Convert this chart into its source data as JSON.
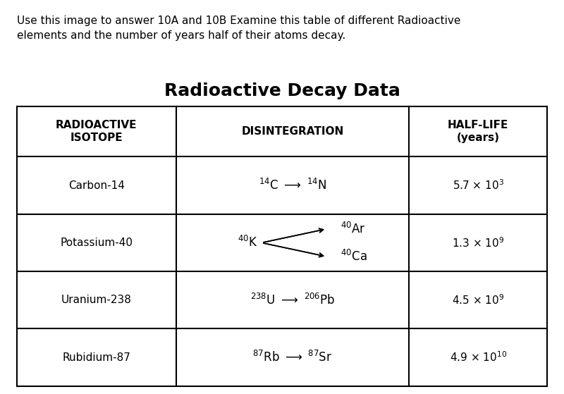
{
  "intro_text": "Use this image to answer 10A and 10B Examine this table of different Radioactive\nelements and the number of years half of their atoms decay.",
  "title": "Radioactive Decay Data",
  "col_headers": [
    "RADIOACTIVE\nISOTOPE",
    "DISINTEGRATION",
    "HALF-LIFE\n(years)"
  ],
  "rows": [
    {
      "isotope": "Carbon-14",
      "disintegration_latex": "$^{14}$C $\\rightarrow$ $^{14}$N",
      "halflife": "5.7 × 10$^3$"
    },
    {
      "isotope": "Potassium-40",
      "disintegration_latex": "$^{40}$K branching",
      "halflife": "1.3 × 10$^9$"
    },
    {
      "isotope": "Uranium-238",
      "disintegration_latex": "$^{238}$U $\\rightarrow$ $^{206}$Pb",
      "halflife": "4.5 × 10$^9$"
    },
    {
      "isotope": "Rubidium-87",
      "disintegration_latex": "$^{87}$Rb $\\rightarrow$ $^{87}$Sr",
      "halflife": "4.9 × 10$^{10}$"
    }
  ],
  "background_color": "#ffffff",
  "table_line_color": "#000000",
  "text_color": "#000000",
  "intro_fontsize": 11,
  "title_fontsize": 18,
  "header_fontsize": 11,
  "cell_fontsize": 11
}
